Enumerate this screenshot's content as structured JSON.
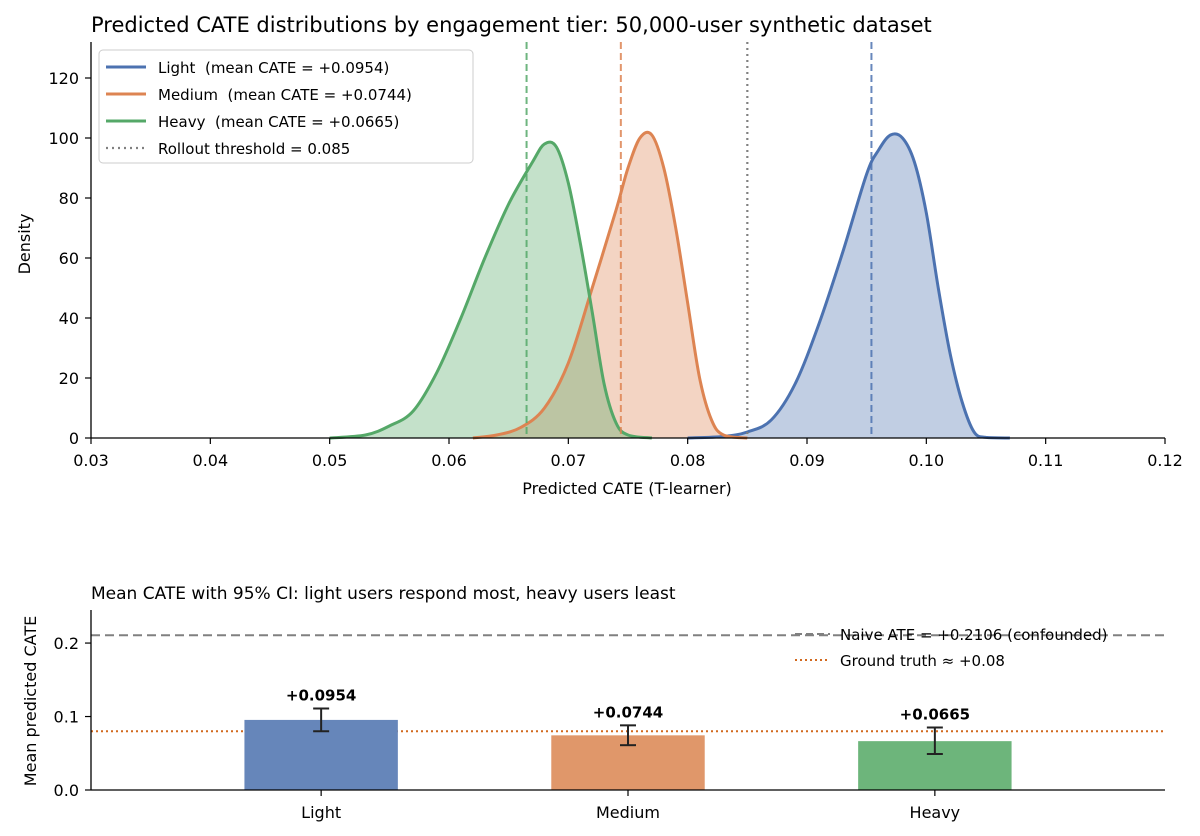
{
  "chart_data": [
    {
      "type": "area",
      "title": "Predicted CATE distributions by engagement tier: 50,000-user synthetic dataset",
      "xlabel": "Predicted CATE (T-learner)",
      "ylabel": "Density",
      "xlim": [
        0.03,
        0.12
      ],
      "ylim": [
        0,
        132
      ],
      "xticks": [
        "0.03",
        "0.04",
        "0.05",
        "0.06",
        "0.07",
        "0.08",
        "0.09",
        "0.10",
        "0.11",
        "0.12"
      ],
      "yticks": [
        "0",
        "20",
        "40",
        "60",
        "80",
        "100",
        "120"
      ],
      "legend_position": "top-left",
      "grid": false,
      "series": [
        {
          "name": "Light  (mean CATE = +0.0954)",
          "color": "#4c72b0",
          "mean": 0.0954,
          "points": [
            [
              0.08,
              0
            ],
            [
              0.083,
              0.5
            ],
            [
              0.085,
              2
            ],
            [
              0.087,
              6
            ],
            [
              0.089,
              18
            ],
            [
              0.091,
              38
            ],
            [
              0.093,
              62
            ],
            [
              0.095,
              88
            ],
            [
              0.096,
              96
            ],
            [
              0.097,
              101
            ],
            [
              0.098,
              100
            ],
            [
              0.099,
              92
            ],
            [
              0.1,
              75
            ],
            [
              0.101,
              50
            ],
            [
              0.102,
              28
            ],
            [
              0.103,
              12
            ],
            [
              0.104,
              2
            ],
            [
              0.105,
              0.2
            ],
            [
              0.107,
              0
            ]
          ]
        },
        {
          "name": "Medium  (mean CATE = +0.0744)",
          "color": "#dd8452",
          "mean": 0.0744,
          "points": [
            [
              0.062,
              0
            ],
            [
              0.064,
              1
            ],
            [
              0.066,
              3.5
            ],
            [
              0.068,
              10
            ],
            [
              0.07,
              25
            ],
            [
              0.072,
              50
            ],
            [
              0.074,
              76
            ],
            [
              0.075,
              90
            ],
            [
              0.076,
              100
            ],
            [
              0.077,
              101
            ],
            [
              0.078,
              90
            ],
            [
              0.079,
              70
            ],
            [
              0.08,
              45
            ],
            [
              0.081,
              20
            ],
            [
              0.082,
              6
            ],
            [
              0.083,
              1
            ],
            [
              0.085,
              0
            ]
          ]
        },
        {
          "name": "Heavy  (mean CATE = +0.0665)",
          "color": "#55a868",
          "mean": 0.0665,
          "points": [
            [
              0.05,
              0
            ],
            [
              0.053,
              1
            ],
            [
              0.055,
              4
            ],
            [
              0.057,
              9
            ],
            [
              0.059,
              22
            ],
            [
              0.061,
              40
            ],
            [
              0.063,
              60
            ],
            [
              0.065,
              78
            ],
            [
              0.067,
              92
            ],
            [
              0.068,
              98
            ],
            [
              0.069,
              97
            ],
            [
              0.07,
              85
            ],
            [
              0.071,
              65
            ],
            [
              0.072,
              42
            ],
            [
              0.073,
              18
            ],
            [
              0.074,
              5
            ],
            [
              0.075,
              1
            ],
            [
              0.077,
              0
            ]
          ]
        }
      ],
      "threshold": {
        "name": "Rollout threshold = 0.085",
        "value": 0.085,
        "color": "#808080"
      }
    },
    {
      "type": "bar",
      "title": "Mean CATE with 95% CI: light users respond most, heavy users least",
      "xlabel": "",
      "ylabel": "Mean predicted CATE",
      "ylim": [
        0,
        0.245
      ],
      "yticks": [
        "0.0",
        "0.1",
        "0.2"
      ],
      "categories": [
        "Light",
        "Medium",
        "Heavy"
      ],
      "values": [
        0.0954,
        0.0744,
        0.0665
      ],
      "value_labels": [
        "+0.0954",
        "+0.0744",
        "+0.0665"
      ],
      "ci_low": [
        0.08,
        0.061,
        0.049
      ],
      "ci_high": [
        0.111,
        0.088,
        0.085
      ],
      "colors": [
        "#6686ba",
        "#e0976a",
        "#6db57b"
      ],
      "legend_position": "top-right",
      "reference_lines": [
        {
          "name": "Naive ATE = +0.2106 (confounded)",
          "value": 0.2106,
          "color": "#808080",
          "style": "dashed"
        },
        {
          "name": "Ground truth ≈ +0.08",
          "value": 0.08,
          "color": "#d2691e",
          "style": "dotted"
        }
      ]
    }
  ]
}
